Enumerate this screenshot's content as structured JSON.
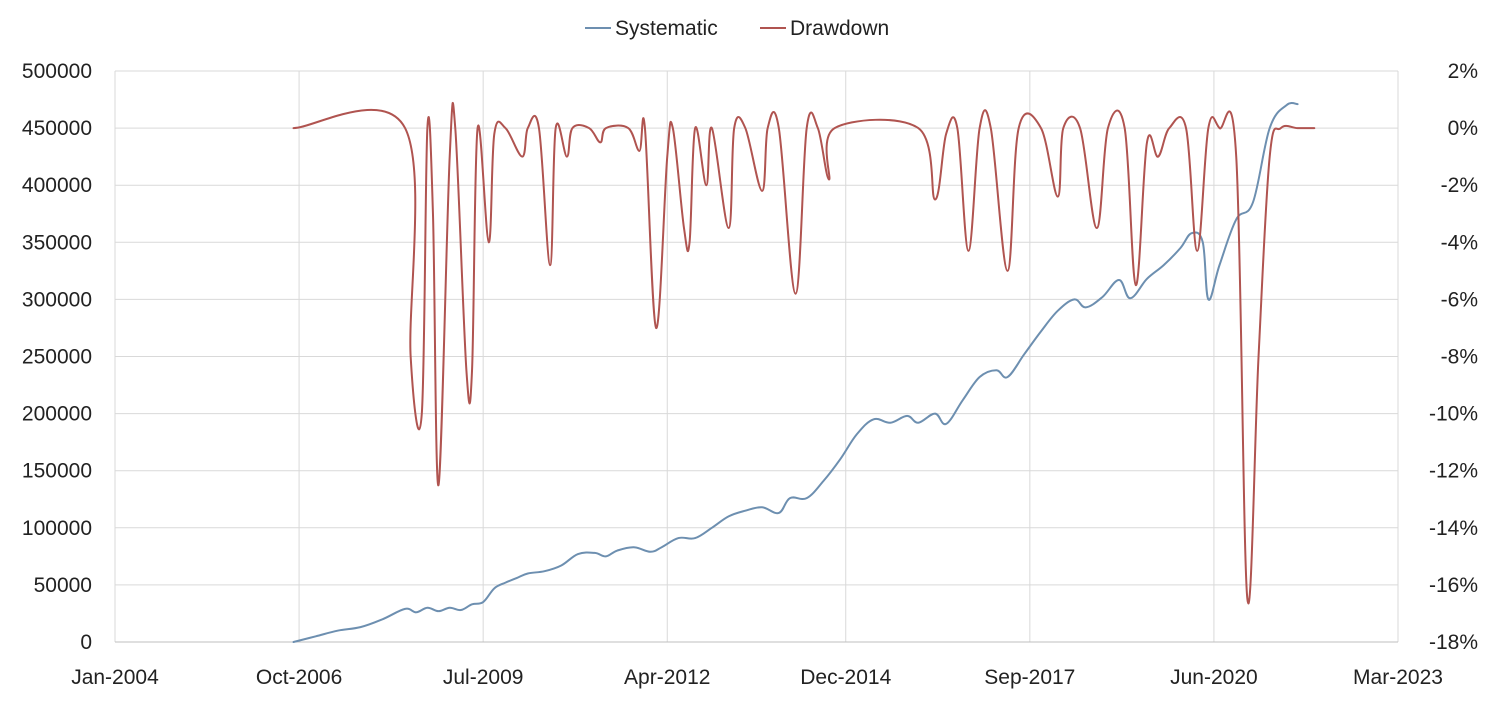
{
  "chart_data": {
    "type": "line",
    "title": "",
    "xlabel": "",
    "ylabel": "",
    "y2label": "",
    "x_axis": {
      "type": "date",
      "range": [
        "2004-01",
        "2023-03"
      ],
      "ticks": [
        {
          "date": "2004-01",
          "label": "Jan-2004"
        },
        {
          "date": "2006-10",
          "label": "Oct-2006"
        },
        {
          "date": "2009-07",
          "label": "Jul-2009"
        },
        {
          "date": "2012-04",
          "label": "Apr-2012"
        },
        {
          "date": "2014-12",
          "label": "Dec-2014"
        },
        {
          "date": "2017-09",
          "label": "Sep-2017"
        },
        {
          "date": "2020-06",
          "label": "Jun-2020"
        },
        {
          "date": "2023-03",
          "label": "Mar-2023"
        }
      ]
    },
    "y_axis_left": {
      "range": [
        0,
        500000
      ],
      "ticks": [
        0,
        50000,
        100000,
        150000,
        200000,
        250000,
        300000,
        350000,
        400000,
        450000,
        500000
      ],
      "tick_labels": [
        "0",
        "50000",
        "100000",
        "150000",
        "200000",
        "250000",
        "300000",
        "350000",
        "400000",
        "450000",
        "500000"
      ]
    },
    "y_axis_right": {
      "range": [
        -18,
        2
      ],
      "unit": "%",
      "ticks": [
        -18,
        -16,
        -14,
        -12,
        -10,
        -8,
        -6,
        -4,
        -2,
        0,
        2
      ],
      "tick_labels": [
        "-18%",
        "-16%",
        "-14%",
        "-12%",
        "-10%",
        "-8%",
        "-6%",
        "-4%",
        "-2%",
        "0%",
        "2%"
      ]
    },
    "grid": {
      "horizontal": true,
      "vertical": true
    },
    "legend": {
      "position": "top-center",
      "entries": [
        "Systematic",
        "Drawdown"
      ]
    },
    "series": [
      {
        "name": "Systematic",
        "axis": "left",
        "color": "#6d8fb0",
        "points": [
          [
            "2006-09",
            0
          ],
          [
            "2007-01",
            5000
          ],
          [
            "2007-05",
            10000
          ],
          [
            "2007-09",
            13000
          ],
          [
            "2008-01",
            20000
          ],
          [
            "2008-05",
            29000
          ],
          [
            "2008-07",
            26000
          ],
          [
            "2008-09",
            30000
          ],
          [
            "2008-11",
            27000
          ],
          [
            "2009-01",
            30000
          ],
          [
            "2009-03",
            28000
          ],
          [
            "2009-05",
            33000
          ],
          [
            "2009-07",
            35000
          ],
          [
            "2009-09",
            47000
          ],
          [
            "2009-11",
            52000
          ],
          [
            "2010-01",
            56000
          ],
          [
            "2010-03",
            60000
          ],
          [
            "2010-06",
            62000
          ],
          [
            "2010-09",
            67000
          ],
          [
            "2010-12",
            77000
          ],
          [
            "2011-03",
            78000
          ],
          [
            "2011-05",
            75000
          ],
          [
            "2011-07",
            80000
          ],
          [
            "2011-10",
            83000
          ],
          [
            "2012-01",
            79000
          ],
          [
            "2012-03",
            83000
          ],
          [
            "2012-06",
            91000
          ],
          [
            "2012-09",
            91000
          ],
          [
            "2012-12",
            100000
          ],
          [
            "2013-03",
            110000
          ],
          [
            "2013-06",
            115000
          ],
          [
            "2013-09",
            118000
          ],
          [
            "2013-12",
            113000
          ],
          [
            "2014-02",
            126000
          ],
          [
            "2014-05",
            126000
          ],
          [
            "2014-08",
            141000
          ],
          [
            "2014-11",
            160000
          ],
          [
            "2015-02",
            182000
          ],
          [
            "2015-05",
            195000
          ],
          [
            "2015-08",
            192000
          ],
          [
            "2015-11",
            198000
          ],
          [
            "2016-01",
            192000
          ],
          [
            "2016-04",
            200000
          ],
          [
            "2016-06",
            191000
          ],
          [
            "2016-09",
            212000
          ],
          [
            "2016-12",
            232000
          ],
          [
            "2017-03",
            238000
          ],
          [
            "2017-05",
            232000
          ],
          [
            "2017-08",
            252000
          ],
          [
            "2017-11",
            272000
          ],
          [
            "2018-02",
            290000
          ],
          [
            "2018-05",
            300000
          ],
          [
            "2018-07",
            293000
          ],
          [
            "2018-10",
            302000
          ],
          [
            "2019-01",
            317000
          ],
          [
            "2019-03",
            301000
          ],
          [
            "2019-06",
            318000
          ],
          [
            "2019-09",
            330000
          ],
          [
            "2019-12",
            345000
          ],
          [
            "2020-02",
            358000
          ],
          [
            "2020-04",
            350000
          ],
          [
            "2020-05",
            300000
          ],
          [
            "2020-07",
            330000
          ],
          [
            "2020-10",
            370000
          ],
          [
            "2021-01",
            385000
          ],
          [
            "2021-04",
            450000
          ],
          [
            "2021-07",
            470000
          ],
          [
            "2021-09",
            471000
          ]
        ]
      },
      {
        "name": "Drawdown",
        "axis": "right",
        "color": "#b05450",
        "points": [
          [
            "2006-09",
            0
          ],
          [
            "2008-05",
            0
          ],
          [
            "2008-06",
            -8
          ],
          [
            "2008-08",
            -10
          ],
          [
            "2008-09",
            0
          ],
          [
            "2008-10",
            -3
          ],
          [
            "2008-11",
            -12.5
          ],
          [
            "2009-01",
            -1
          ],
          [
            "2009-02",
            0
          ],
          [
            "2009-04",
            -8.5
          ],
          [
            "2009-05",
            -8.5
          ],
          [
            "2009-06",
            0
          ],
          [
            "2009-08",
            -4
          ],
          [
            "2009-09",
            -0.2
          ],
          [
            "2009-11",
            0
          ],
          [
            "2010-02",
            -1
          ],
          [
            "2010-03",
            0
          ],
          [
            "2010-05",
            0
          ],
          [
            "2010-07",
            -4.8
          ],
          [
            "2010-08",
            0
          ],
          [
            "2010-10",
            -1
          ],
          [
            "2010-11",
            0
          ],
          [
            "2011-02",
            0
          ],
          [
            "2011-04",
            -0.5
          ],
          [
            "2011-05",
            0
          ],
          [
            "2011-09",
            0
          ],
          [
            "2011-11",
            -0.8
          ],
          [
            "2011-12",
            0
          ],
          [
            "2012-02",
            -7
          ],
          [
            "2012-04",
            -1
          ],
          [
            "2012-05",
            0
          ],
          [
            "2012-07",
            -3.5
          ],
          [
            "2012-08",
            -4
          ],
          [
            "2012-09",
            0
          ],
          [
            "2012-11",
            -2
          ],
          [
            "2012-12",
            0
          ],
          [
            "2013-03",
            -3.5
          ],
          [
            "2013-04",
            0
          ],
          [
            "2013-06",
            0
          ],
          [
            "2013-09",
            -2.2
          ],
          [
            "2013-10",
            0
          ],
          [
            "2013-12",
            0
          ],
          [
            "2014-03",
            -5.8
          ],
          [
            "2014-05",
            0
          ],
          [
            "2014-07",
            0
          ],
          [
            "2014-09",
            -1.8
          ],
          [
            "2014-10",
            0
          ],
          [
            "2016-01",
            0
          ],
          [
            "2016-04",
            -2.5
          ],
          [
            "2016-06",
            -0.2
          ],
          [
            "2016-08",
            0
          ],
          [
            "2016-10",
            -4.3
          ],
          [
            "2016-12",
            0
          ],
          [
            "2017-02",
            0
          ],
          [
            "2017-05",
            -5
          ],
          [
            "2017-07",
            0
          ],
          [
            "2017-11",
            0
          ],
          [
            "2018-02",
            -2.4
          ],
          [
            "2018-03",
            0
          ],
          [
            "2018-06",
            0
          ],
          [
            "2018-09",
            -3.5
          ],
          [
            "2018-11",
            0
          ],
          [
            "2019-02",
            0
          ],
          [
            "2019-04",
            -5.5
          ],
          [
            "2019-06",
            -0.5
          ],
          [
            "2019-08",
            -1
          ],
          [
            "2019-10",
            0
          ],
          [
            "2020-01",
            0
          ],
          [
            "2020-03",
            -4.3
          ],
          [
            "2020-05",
            0
          ],
          [
            "2020-07",
            0
          ],
          [
            "2020-10",
            -1
          ],
          [
            "2020-12",
            -16.5
          ],
          [
            "2021-02",
            -8
          ],
          [
            "2021-04",
            -1
          ],
          [
            "2021-06",
            0
          ],
          [
            "2021-09",
            0
          ],
          [
            "2021-12",
            0
          ]
        ]
      }
    ]
  }
}
